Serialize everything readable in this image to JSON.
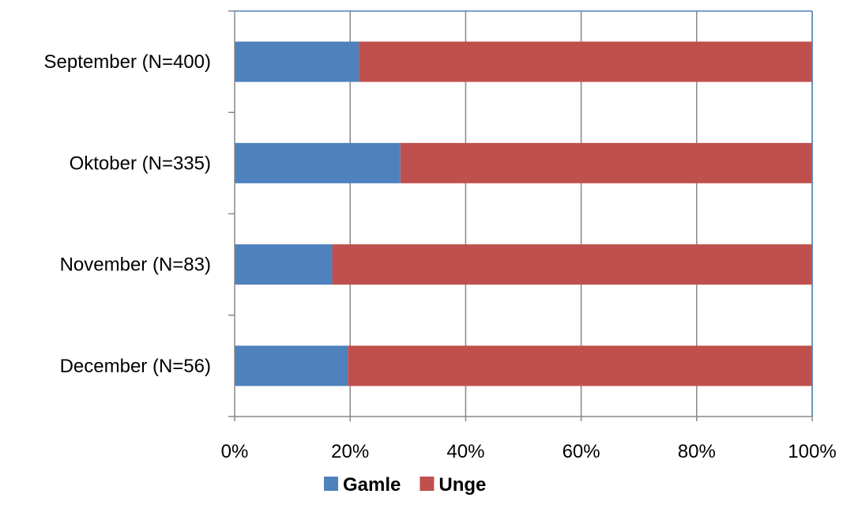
{
  "chart_data": {
    "type": "bar",
    "orientation": "horizontal",
    "stacked": "percent",
    "categories": [
      "September (N=400)",
      "Oktober (N=335)",
      "November (N=83)",
      "December (N=56)"
    ],
    "series": [
      {
        "name": "Gamle",
        "color": "#4F81BD",
        "values": [
          21.5,
          28.7,
          16.9,
          19.6
        ]
      },
      {
        "name": "Unge",
        "color": "#C0504D",
        "values": [
          78.5,
          71.3,
          83.1,
          80.4
        ]
      }
    ],
    "xlim": [
      0,
      100
    ],
    "x_ticks": [
      "0%",
      "20%",
      "40%",
      "60%",
      "80%",
      "100%"
    ],
    "grid": "vertical",
    "legend": "bottom-center"
  }
}
